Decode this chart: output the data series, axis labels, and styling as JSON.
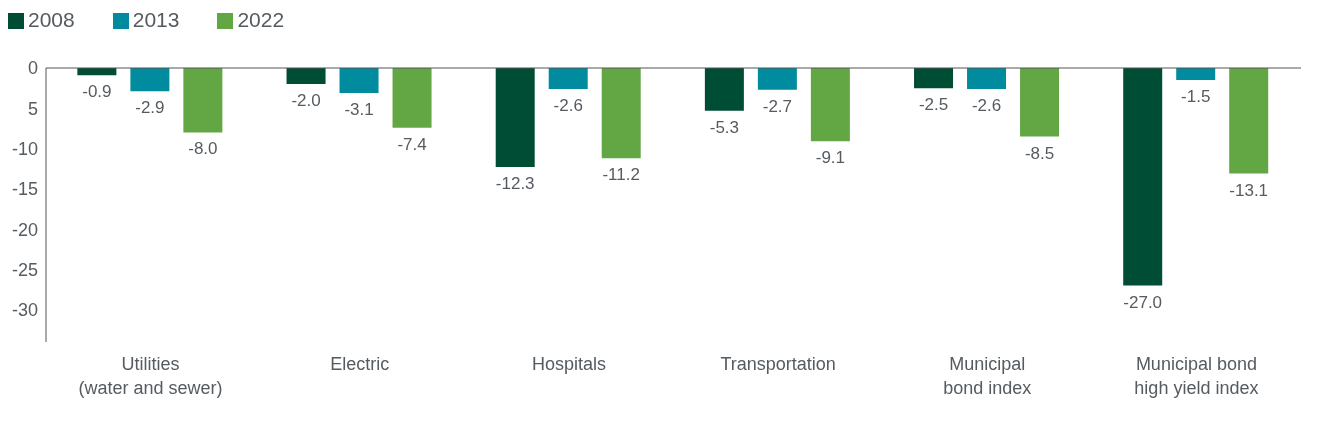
{
  "chart_data": {
    "type": "bar",
    "categories": [
      "Utilities\n(water and sewer)",
      "Electric",
      "Hospitals",
      "Transportation",
      "Municipal\nbond index",
      "Municipal bond\nhigh yield index"
    ],
    "series": [
      {
        "name": "2008",
        "color": "#004d35",
        "values": [
          -0.9,
          -2,
          -12.3,
          -5.3,
          -2.5,
          -27
        ],
        "value_labels": [
          "-0.9",
          "-2.0",
          "-12.3",
          "-5.3",
          "-2.5",
          "-27.0"
        ]
      },
      {
        "name": "2013",
        "color": "#008c9e",
        "values": [
          -2.9,
          -3.1,
          -2.6,
          -2.7,
          -2.6,
          -1.5
        ],
        "value_labels": [
          "-2.9",
          "-3.1",
          "-2.6",
          "-2.7",
          "-2.6",
          "-1.5"
        ]
      },
      {
        "name": "2022",
        "color": "#62a744",
        "values": [
          -8,
          -7.4,
          -11.2,
          -9.1,
          -8.5,
          -13.1
        ],
        "value_labels": [
          "-8.0",
          "-7.4",
          "-11.2",
          "-9.1",
          "-8.5",
          "-13.1"
        ]
      }
    ],
    "ylim": [
      -34,
      0
    ],
    "yticks": [
      0,
      {
        "value": -5,
        "label": "5"
      },
      -10,
      -15,
      -20,
      -25,
      -30
    ],
    "grid": false,
    "legend": "top left"
  }
}
